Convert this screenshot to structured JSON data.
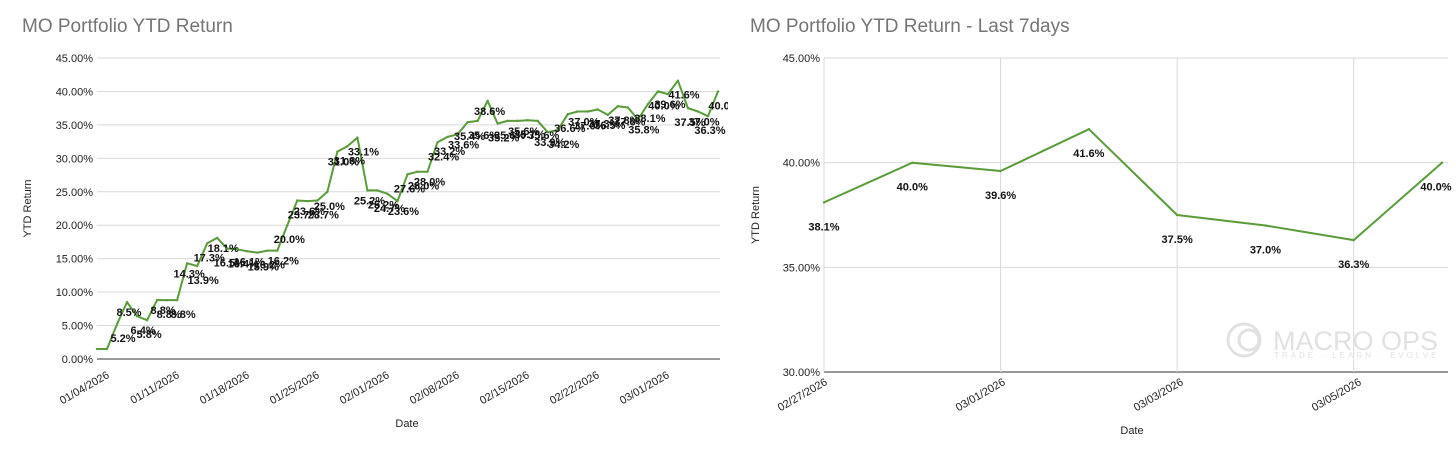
{
  "chart_data": [
    {
      "type": "line",
      "title": "MO Portfolio YTD Return",
      "xlabel": "Date",
      "ylabel": "YTD Return",
      "ylim": [
        0,
        45
      ],
      "yticks": [
        "0.00%",
        "5.00%",
        "10.00%",
        "15.00%",
        "20.00%",
        "25.00%",
        "30.00%",
        "35.00%",
        "40.00%",
        "45.00%"
      ],
      "xticks": [
        "01/04/2026",
        "01/11/2026",
        "01/18/2026",
        "01/25/2026",
        "02/01/2026",
        "02/08/2026",
        "02/15/2026",
        "02/22/2026",
        "03/01/2026"
      ],
      "grid": true,
      "legend": "none",
      "color": "#5a9b3a",
      "values": [
        1.5,
        1.5,
        5.2,
        8.5,
        6.4,
        5.8,
        8.8,
        8.8,
        8.8,
        14.3,
        13.9,
        17.3,
        18.1,
        16.5,
        16.4,
        16.1,
        15.9,
        16.2,
        16.2,
        20.0,
        23.7,
        23.6,
        23.7,
        25.0,
        31.0,
        31.8,
        33.1,
        25.2,
        25.2,
        24.7,
        23.6,
        27.6,
        28.0,
        28.0,
        32.4,
        33.2,
        33.6,
        35.4,
        35.6,
        38.6,
        35.2,
        35.6,
        35.6,
        35.7,
        35.6,
        33.9,
        34.2,
        36.6,
        37.0,
        37.0,
        37.3,
        36.5,
        37.8,
        37.6,
        35.8,
        38.1,
        40.0,
        39.6,
        41.6,
        37.5,
        37.0,
        36.3,
        40.0
      ],
      "labels": [
        "",
        "",
        "5.2%",
        "8.5%",
        "6.4%",
        "5.8%",
        "8.8%",
        "8.8%",
        "8.8%",
        "14.3%",
        "13.9%",
        "17.3%",
        "18.1%",
        "16.5%",
        "16.4%",
        "16.1%",
        "15.9%",
        "16.2%",
        "16.2%",
        "20.0%",
        "23.7%",
        "23.6%",
        "23.7%",
        "25.0%",
        "31.0%",
        "31.8%",
        "33.1%",
        "25.2%",
        "25.2%",
        "24.7%",
        "23.6%",
        "27.6%",
        "28.0%",
        "28.0%",
        "32.4%",
        "33.2%",
        "33.6%",
        "35.4%",
        "35.6%",
        "38.6%",
        "35.2%",
        "35.6%",
        "35.6%",
        "35.7%",
        "35.6%",
        "33.9%",
        "34.2%",
        "36.6%",
        "37.0%",
        "37.0%",
        "37.3%",
        "36.5%",
        "37.8%",
        "37.6%",
        "35.8%",
        "38.1%",
        "40.0%",
        "39.6%",
        "41.6%",
        "37.5%",
        "37.0%",
        "36.3%",
        "40.0%"
      ]
    },
    {
      "type": "line",
      "title": "MO Portfolio YTD Return - Last 7days",
      "xlabel": "Date",
      "ylabel": "YTD Return",
      "ylim": [
        30,
        45
      ],
      "yticks": [
        "30.00%",
        "35.00%",
        "40.00%",
        "45.00%"
      ],
      "xticks": [
        "02/27/2026",
        "03/01/2026",
        "03/03/2026",
        "03/05/2026"
      ],
      "grid": true,
      "legend": "none",
      "color": "#5a9b3a",
      "values": [
        38.1,
        40.0,
        39.6,
        41.6,
        37.5,
        37.0,
        36.3,
        40.0
      ],
      "labels": [
        "38.1%",
        "40.0%",
        "39.6%",
        "41.6%",
        "37.5%",
        "37.0%",
        "36.3%",
        "40.0%"
      ]
    }
  ],
  "watermark": {
    "brand": "MACRO OPS",
    "tagline": "TRADE · LEARN · EVOLVE"
  }
}
